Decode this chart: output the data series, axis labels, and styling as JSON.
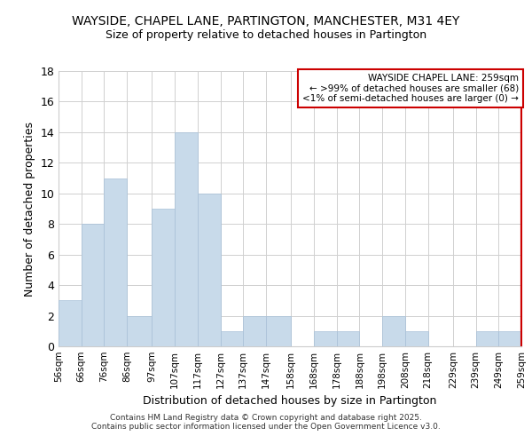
{
  "title_line1": "WAYSIDE, CHAPEL LANE, PARTINGTON, MANCHESTER, M31 4EY",
  "title_line2": "Size of property relative to detached houses in Partington",
  "xlabel": "Distribution of detached houses by size in Partington",
  "ylabel": "Number of detached properties",
  "bar_left_edges": [
    56,
    66,
    76,
    86,
    97,
    107,
    117,
    127,
    137,
    147,
    158,
    168,
    178,
    188,
    198,
    208,
    218,
    229,
    239,
    249
  ],
  "bar_widths": [
    10,
    10,
    10,
    11,
    10,
    10,
    10,
    10,
    10,
    11,
    10,
    10,
    10,
    10,
    10,
    10,
    11,
    10,
    10,
    10
  ],
  "bar_heights": [
    3,
    8,
    11,
    2,
    9,
    14,
    10,
    1,
    2,
    2,
    0,
    1,
    1,
    0,
    2,
    1,
    0,
    0,
    1,
    1
  ],
  "bar_color": "#c8daea",
  "bar_edgecolor": "#a8c0d8",
  "highlight_x": 259,
  "highlight_color": "#cc0000",
  "xtick_labels": [
    "56sqm",
    "66sqm",
    "76sqm",
    "86sqm",
    "97sqm",
    "107sqm",
    "117sqm",
    "127sqm",
    "137sqm",
    "147sqm",
    "158sqm",
    "168sqm",
    "178sqm",
    "188sqm",
    "198sqm",
    "208sqm",
    "218sqm",
    "229sqm",
    "239sqm",
    "249sqm",
    "259sqm"
  ],
  "xtick_positions": [
    56,
    66,
    76,
    86,
    97,
    107,
    117,
    127,
    137,
    147,
    158,
    168,
    178,
    188,
    198,
    208,
    218,
    229,
    239,
    249,
    259
  ],
  "ylim": [
    0,
    18
  ],
  "yticks": [
    0,
    2,
    4,
    6,
    8,
    10,
    12,
    14,
    16,
    18
  ],
  "annotation_title": "WAYSIDE CHAPEL LANE: 259sqm",
  "annotation_line1": "← >99% of detached houses are smaller (68)",
  "annotation_line2": "<1% of semi-detached houses are larger (0) →",
  "annotation_box_color": "#ffffff",
  "annotation_box_edgecolor": "#cc0000",
  "footer_line1": "Contains HM Land Registry data © Crown copyright and database right 2025.",
  "footer_line2": "Contains public sector information licensed under the Open Government Licence v3.0.",
  "bg_color": "#ffffff",
  "grid_color": "#d0d0d0"
}
